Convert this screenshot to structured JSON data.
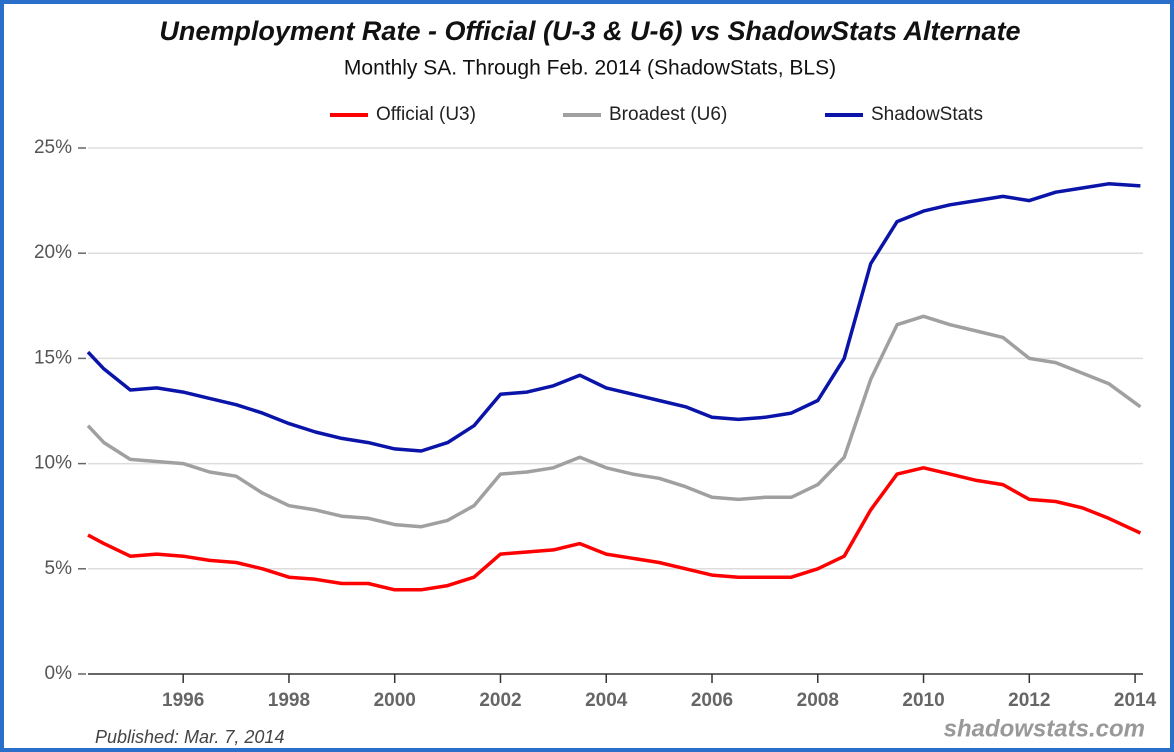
{
  "chart_data": {
    "type": "line",
    "title": "Unemployment Rate - Official (U-3 & U-6) vs ShadowStats Alternate",
    "subtitle": "Monthly SA. Through Feb. 2014  (ShadowStats, BLS)",
    "published": "Published: Mar. 7, 2014",
    "source": "shadowstats.com",
    "x": [
      1994.2,
      1994.5,
      1995,
      1995.5,
      1996,
      1996.5,
      1997,
      1997.5,
      1998,
      1998.5,
      1999,
      1999.5,
      2000,
      2000.5,
      2001,
      2001.5,
      2002,
      2002.5,
      2003,
      2003.5,
      2004,
      2004.5,
      2005,
      2005.5,
      2006,
      2006.5,
      2007,
      2007.5,
      2008,
      2008.5,
      2009,
      2009.5,
      2010,
      2010.5,
      2011,
      2011.5,
      2012,
      2012.5,
      2013,
      2013.5,
      2014.1
    ],
    "series": [
      {
        "name": "Official (U3)",
        "color": "#ff0000",
        "values": [
          6.6,
          6.2,
          5.6,
          5.7,
          5.6,
          5.4,
          5.3,
          5.0,
          4.6,
          4.5,
          4.3,
          4.3,
          4.0,
          4.0,
          4.2,
          4.6,
          5.7,
          5.8,
          5.9,
          6.2,
          5.7,
          5.5,
          5.3,
          5.0,
          4.7,
          4.6,
          4.6,
          4.6,
          5.0,
          5.6,
          7.8,
          9.5,
          9.8,
          9.5,
          9.2,
          9.0,
          8.3,
          8.2,
          7.9,
          7.4,
          6.7
        ]
      },
      {
        "name": "Broadest (U6)",
        "color": "#a0a0a0",
        "values": [
          11.8,
          11.0,
          10.2,
          10.1,
          10.0,
          9.6,
          9.4,
          8.6,
          8.0,
          7.8,
          7.5,
          7.4,
          7.1,
          7.0,
          7.3,
          8.0,
          9.5,
          9.6,
          9.8,
          10.3,
          9.8,
          9.5,
          9.3,
          8.9,
          8.4,
          8.3,
          8.4,
          8.4,
          9.0,
          10.3,
          14.0,
          16.6,
          17.0,
          16.6,
          16.3,
          16.0,
          15.0,
          14.8,
          14.3,
          13.8,
          12.7
        ]
      },
      {
        "name": "ShadowStats",
        "color": "#0a14a8",
        "values": [
          15.3,
          14.5,
          13.5,
          13.6,
          13.4,
          13.1,
          12.8,
          12.4,
          11.9,
          11.5,
          11.2,
          11.0,
          10.7,
          10.6,
          11.0,
          11.8,
          13.3,
          13.4,
          13.7,
          14.2,
          13.6,
          13.3,
          13.0,
          12.7,
          12.2,
          12.1,
          12.2,
          12.4,
          13.0,
          15.0,
          19.5,
          21.5,
          22.0,
          22.3,
          22.5,
          22.7,
          22.5,
          22.9,
          23.1,
          23.3,
          23.2
        ]
      }
    ],
    "xlim": [
      1994.2,
      2014.15
    ],
    "xticks": [
      1996,
      1998,
      2000,
      2002,
      2004,
      2006,
      2008,
      2010,
      2012,
      2014
    ],
    "ylim": [
      0,
      25
    ],
    "yticks": [
      {
        "value": 0,
        "label": "0%"
      },
      {
        "value": 5,
        "label": "5%"
      },
      {
        "value": 10,
        "label": "10%"
      },
      {
        "value": 15,
        "label": "15%"
      },
      {
        "value": 20,
        "label": "20%"
      },
      {
        "value": 25,
        "label": "25%"
      }
    ],
    "grid": true,
    "legend": "top"
  }
}
